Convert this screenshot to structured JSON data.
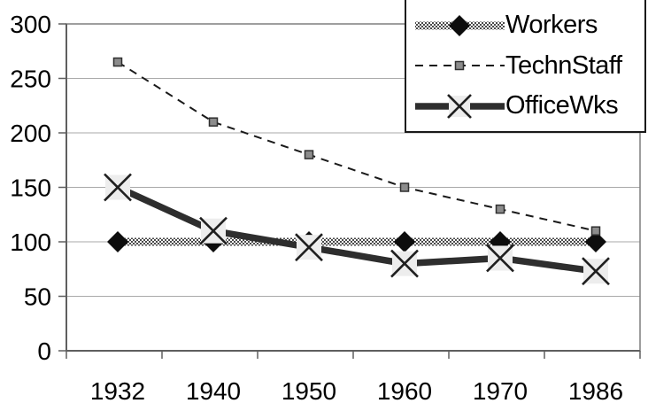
{
  "chart_data": {
    "type": "line",
    "title": "",
    "xlabel": "",
    "ylabel": "",
    "categories": [
      "1932",
      "1940",
      "1950",
      "1960",
      "1970",
      "1986"
    ],
    "series": [
      {
        "name": "Workers",
        "values": [
          100,
          100,
          100,
          100,
          100,
          100
        ],
        "line_style": "thick-pattern",
        "marker": "diamond",
        "color": "#0d0d0d"
      },
      {
        "name": "TechnStaff",
        "values": [
          265,
          210,
          180,
          150,
          130,
          110
        ],
        "line_style": "dashed",
        "marker": "square",
        "color": "#1a1a1a"
      },
      {
        "name": "OfficeWks",
        "values": [
          150,
          110,
          95,
          80,
          85,
          73
        ],
        "line_style": "thick-solid",
        "marker": "x-cross",
        "color": "#2e2e2e"
      }
    ],
    "ylim": [
      0,
      300
    ],
    "y_ticks": [
      0,
      50,
      100,
      150,
      200,
      250,
      300
    ],
    "grid": true,
    "legend_position": "top-right",
    "colors": {
      "background": "#ffffff",
      "gridline": "#a9a9a9",
      "frame": "#7e7e7e",
      "axis": "#5f5f5f",
      "tick_label": "#000000",
      "marker_square_fill": "#8c8c8c",
      "marker_square_border": "#2f2f2f",
      "x_marker_background": "#ededed",
      "x_marker_stroke": "#1f1f1f",
      "legend_border": "#1a1a1a"
    }
  }
}
